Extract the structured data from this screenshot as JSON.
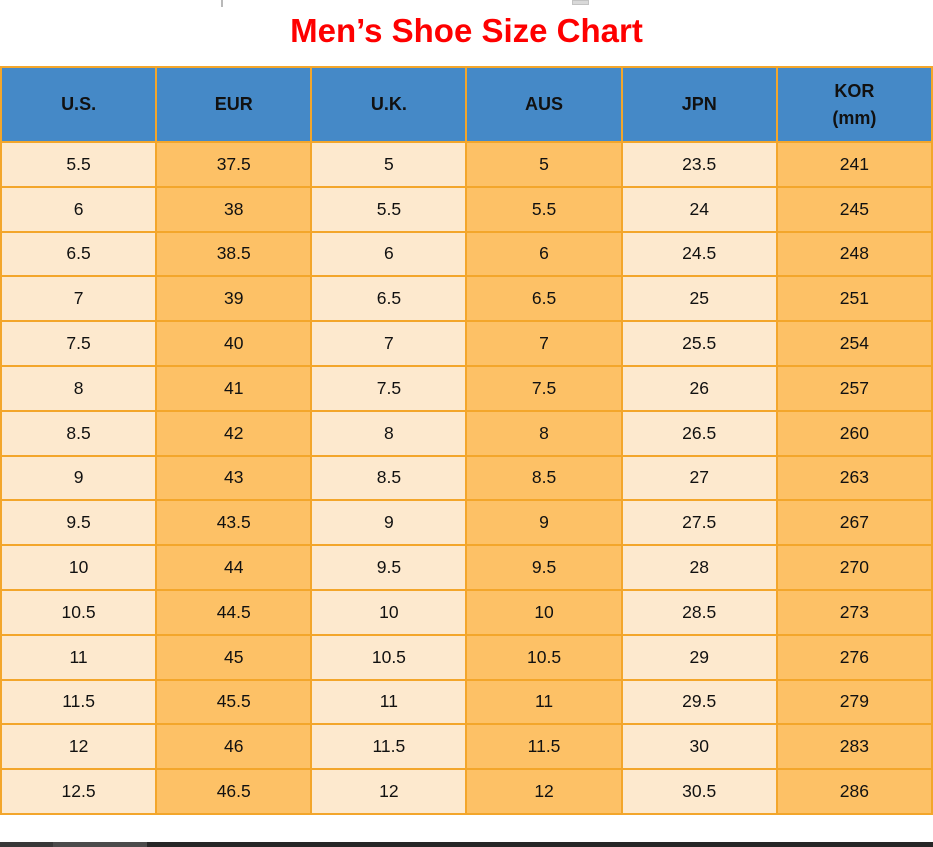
{
  "title": "Men’s Shoe Size Chart",
  "colors": {
    "title_red": "#fe0000",
    "header_blue": "#4589c7",
    "cell_cream": "#fde9ce",
    "cell_orange": "#fdc166",
    "grid_orange": "#f3a62b",
    "text": "#111111"
  },
  "chart_data": {
    "type": "table",
    "title": "Men’s Shoe Size Chart",
    "columns": [
      "U.S.",
      "EUR",
      "U.K.",
      "AUS",
      "JPN",
      "KOR (mm)"
    ],
    "header_lines": [
      [
        "U.S."
      ],
      [
        "EUR"
      ],
      [
        "U.K."
      ],
      [
        "AUS"
      ],
      [
        "JPN"
      ],
      [
        "KOR",
        "(mm)"
      ]
    ],
    "rows": [
      [
        "5.5",
        "37.5",
        "5",
        "5",
        "23.5",
        "241"
      ],
      [
        "6",
        "38",
        "5.5",
        "5.5",
        "24",
        "245"
      ],
      [
        "6.5",
        "38.5",
        "6",
        "6",
        "24.5",
        "248"
      ],
      [
        "7",
        "39",
        "6.5",
        "6.5",
        "25",
        "251"
      ],
      [
        "7.5",
        "40",
        "7",
        "7",
        "25.5",
        "254"
      ],
      [
        "8",
        "41",
        "7.5",
        "7.5",
        "26",
        "257"
      ],
      [
        "8.5",
        "42",
        "8",
        "8",
        "26.5",
        "260"
      ],
      [
        "9",
        "43",
        "8.5",
        "8.5",
        "27",
        "263"
      ],
      [
        "9.5",
        "43.5",
        "9",
        "9",
        "27.5",
        "267"
      ],
      [
        "10",
        "44",
        "9.5",
        "9.5",
        "28",
        "270"
      ],
      [
        "10.5",
        "44.5",
        "10",
        "10",
        "28.5",
        "273"
      ],
      [
        "11",
        "45",
        "10.5",
        "10.5",
        "29",
        "276"
      ],
      [
        "11.5",
        "45.5",
        "11",
        "11",
        "29.5",
        "279"
      ],
      [
        "12",
        "46",
        "11.5",
        "11.5",
        "30",
        "283"
      ],
      [
        "12.5",
        "46.5",
        "12",
        "12",
        "30.5",
        "286"
      ]
    ],
    "layout": {
      "grid": "on",
      "column_striping": [
        "cream",
        "orange",
        "cream",
        "orange",
        "cream",
        "orange"
      ],
      "header_position": "top"
    }
  }
}
